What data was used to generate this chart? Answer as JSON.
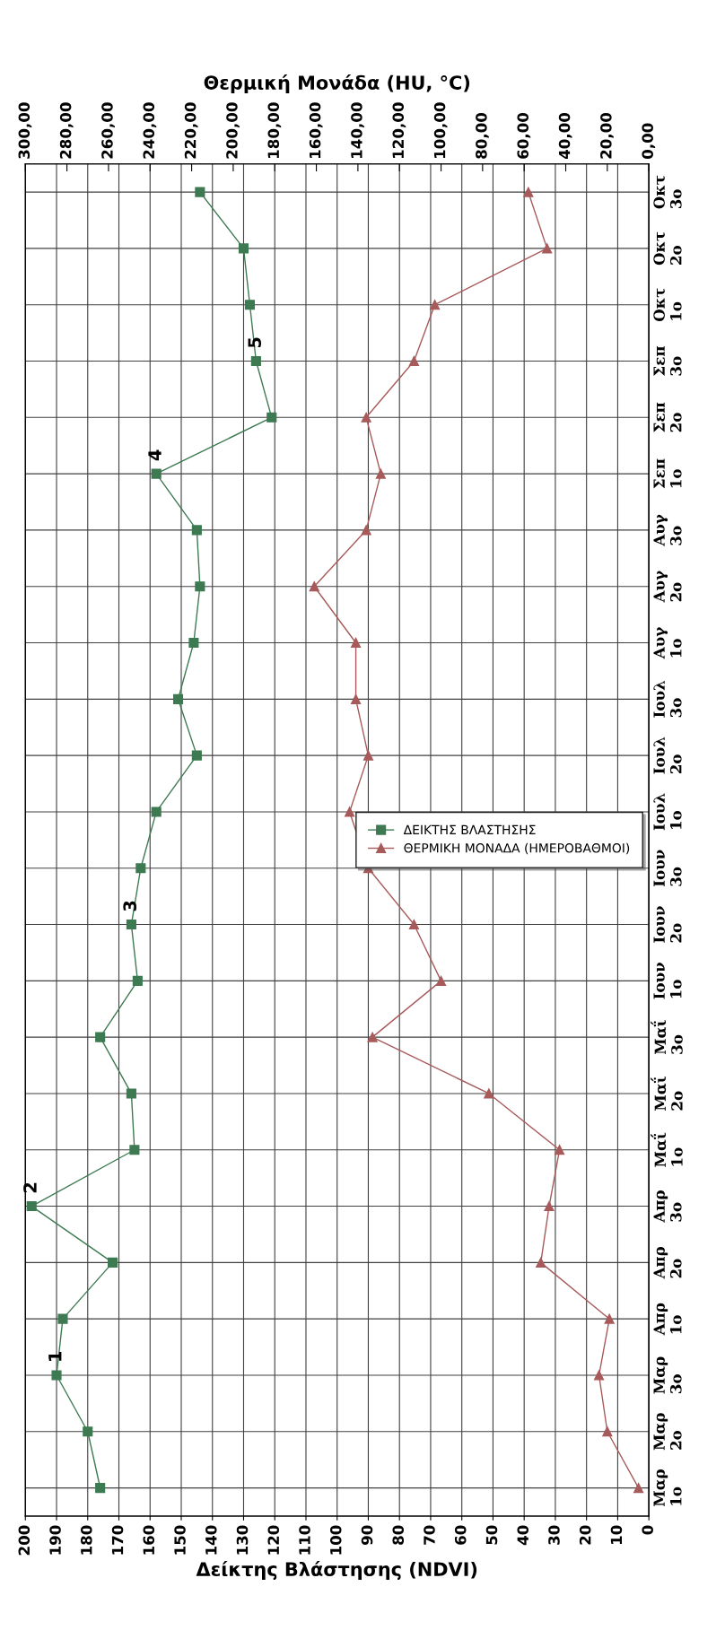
{
  "chart_data": {
    "type": "line",
    "orientation": "horizontal",
    "xlabel": "Δείκτης Βλάστησης (NDVI)",
    "x2label": "Θερμική Μονάδα (HU, °C)",
    "categories": [
      "Οκτ\n3ο",
      "Οκτ\n2ο",
      "Οκτ\n1ο",
      "Σεπ\n3ο",
      "Σεπ\n2ο",
      "Σεπ\n1ο",
      "Αυγ\n3ο",
      "Αυγ\n2ο",
      "Αυγ\n1ο",
      "Ιουλ\n3ο",
      "Ιουλ\n2ο",
      "Ιουλ\n1ο",
      "Ιουν\n3ο",
      "Ιουν\n2ο",
      "Ιουν\n1ο",
      "Μαΐ\n3ο",
      "Μαΐ\n2ο",
      "Μαΐ\n1ο",
      "Απρ\n3ο",
      "Απρ\n2ο",
      "Απρ\n1ο",
      "Μαρ\n3ο",
      "Μαρ\n2ο",
      "Μαρ\n1ο"
    ],
    "series": [
      {
        "name": "ΔΕΙΚΤΗΣ ΒΛΑΣΤΗΣΗΣ",
        "color": "#3d7a52",
        "marker": "square",
        "values": [
          144,
          130,
          128,
          126,
          121,
          158,
          145,
          144,
          146,
          151,
          145,
          158,
          163,
          166,
          164,
          176,
          166,
          165,
          198,
          172,
          188,
          190,
          180,
          176
        ]
      },
      {
        "name": "ΘΕΡΜΙΚΗ ΜΟΝΑΔΑ (ΗΜΕΡΟΒΑΘΜΟΙ)",
        "color": "#a85a5a",
        "marker": "triangle",
        "axis": "x2",
        "values": [
          58,
          49,
          103,
          113,
          136,
          129,
          136,
          161,
          141,
          141,
          135,
          144,
          135,
          113,
          100,
          133,
          77,
          43,
          48,
          52,
          19,
          24,
          20,
          5
        ]
      }
    ],
    "xlim": [
      200,
      0
    ],
    "xticks": [
      200,
      190,
      180,
      170,
      160,
      150,
      140,
      130,
      120,
      110,
      100,
      90,
      80,
      70,
      60,
      50,
      40,
      30,
      20,
      10,
      0
    ],
    "x2lim": [
      300,
      0
    ],
    "x2ticks": [
      {
        "value": 300,
        "label": "300,00"
      },
      {
        "value": 280,
        "label": "280,00"
      },
      {
        "value": 260,
        "label": "260,00"
      },
      {
        "value": 240,
        "label": "240,00"
      },
      {
        "value": 220,
        "label": "220,00"
      },
      {
        "value": 200,
        "label": "200,00"
      },
      {
        "value": 180,
        "label": "180,00"
      },
      {
        "value": 160,
        "label": "160,00"
      },
      {
        "value": 140,
        "label": "140,00"
      },
      {
        "value": 120,
        "label": "120,00"
      },
      {
        "value": 100,
        "label": "100,00"
      },
      {
        "value": 80,
        "label": "80,00"
      },
      {
        "value": 60,
        "label": "60,00"
      },
      {
        "value": 40,
        "label": "40,00"
      },
      {
        "value": 20,
        "label": "20,00"
      },
      {
        "value": 0,
        "label": "0,00"
      }
    ],
    "annotations": [
      {
        "text": "1",
        "x": 190,
        "y": "Μαρ\n3ο"
      },
      {
        "text": "2",
        "x": 198,
        "y": "Απρ\n3ο"
      },
      {
        "text": "3",
        "x": 166,
        "y": "Ιουν\n2ο"
      },
      {
        "text": "4",
        "x": 158,
        "y": "Σεπ\n1ο"
      },
      {
        "text": "5",
        "x": 126,
        "y": "Σεπ\n3ο"
      }
    ],
    "grid": true,
    "legend": "right",
    "line_style": "solid"
  }
}
